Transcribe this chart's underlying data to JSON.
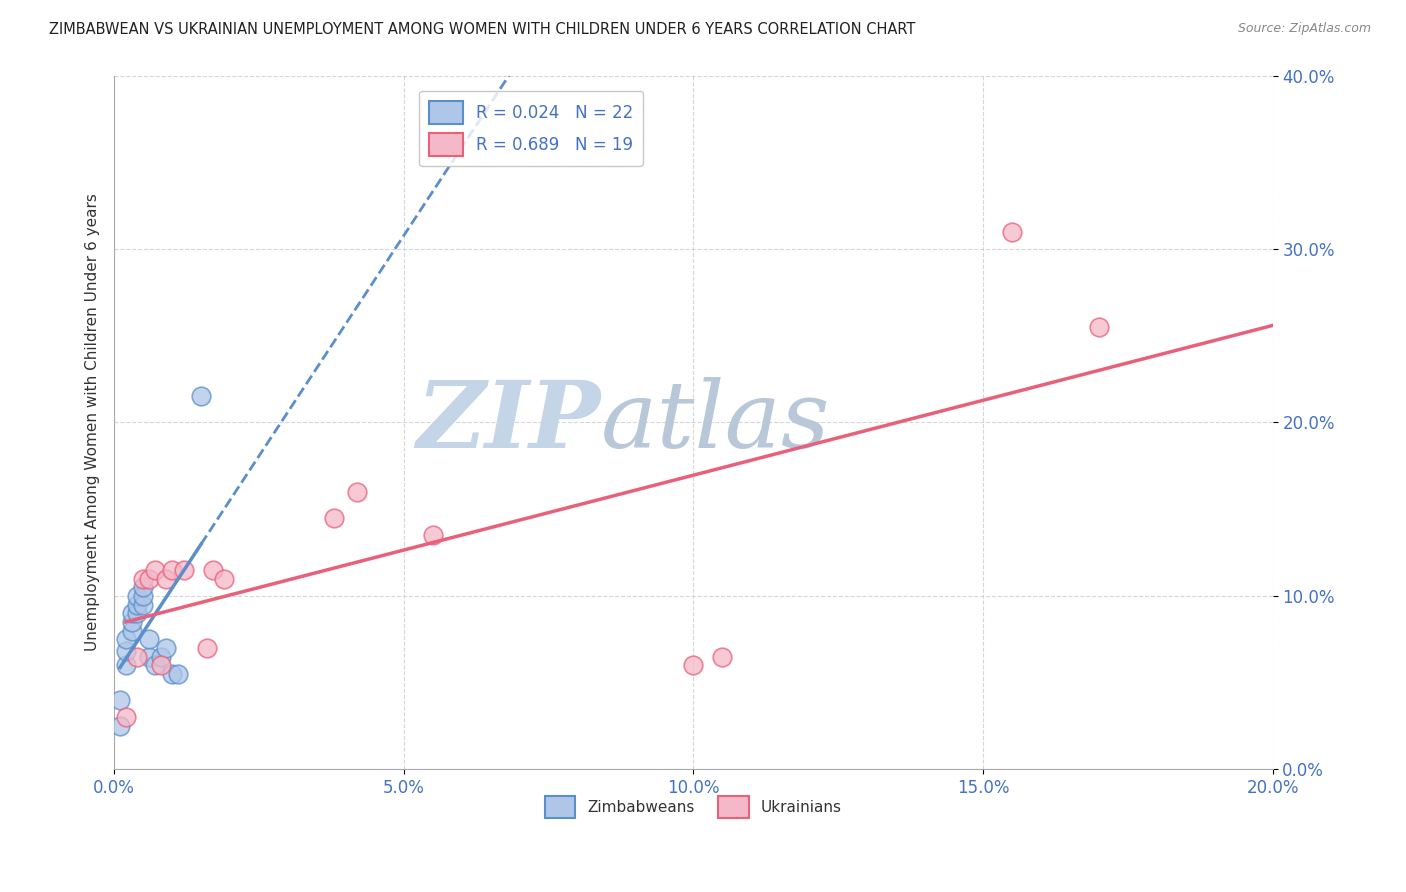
{
  "title": "ZIMBABWEAN VS UKRAINIAN UNEMPLOYMENT AMONG WOMEN WITH CHILDREN UNDER 6 YEARS CORRELATION CHART",
  "source": "Source: ZipAtlas.com",
  "ylabel": "Unemployment Among Women with Children Under 6 years",
  "legend_labels": [
    "Zimbabweans",
    "Ukrainians"
  ],
  "zim_R": "0.024",
  "zim_N": "22",
  "ukr_R": "0.689",
  "ukr_N": "19",
  "zim_color": "#aec6e8",
  "ukr_color": "#f4b8c8",
  "zim_edge_color": "#5b8fc9",
  "ukr_edge_color": "#e8607a",
  "zim_line_color": "#5b8fc9",
  "ukr_line_color": "#e8607a",
  "background_color": "#ffffff",
  "grid_color": "#cccccc",
  "xlim": [
    0.0,
    0.2
  ],
  "ylim": [
    0.0,
    0.4
  ],
  "xticks": [
    0.0,
    0.05,
    0.1,
    0.15,
    0.2
  ],
  "yticks": [
    0.0,
    0.1,
    0.2,
    0.3,
    0.4
  ],
  "tick_label_color": "#4472c4",
  "zim_x": [
    0.001,
    0.001,
    0.002,
    0.002,
    0.002,
    0.003,
    0.003,
    0.003,
    0.004,
    0.004,
    0.004,
    0.005,
    0.005,
    0.005,
    0.006,
    0.006,
    0.007,
    0.008,
    0.009,
    0.01,
    0.011,
    0.015
  ],
  "zim_y": [
    0.04,
    0.025,
    0.06,
    0.068,
    0.075,
    0.08,
    0.085,
    0.09,
    0.09,
    0.095,
    0.1,
    0.095,
    0.1,
    0.105,
    0.065,
    0.075,
    0.06,
    0.065,
    0.07,
    0.055,
    0.055,
    0.215
  ],
  "ukr_x": [
    0.002,
    0.004,
    0.005,
    0.006,
    0.007,
    0.008,
    0.009,
    0.01,
    0.012,
    0.016,
    0.017,
    0.019,
    0.038,
    0.042,
    0.055,
    0.1,
    0.105,
    0.155,
    0.17
  ],
  "ukr_y": [
    0.03,
    0.065,
    0.11,
    0.11,
    0.115,
    0.06,
    0.11,
    0.115,
    0.115,
    0.07,
    0.115,
    0.11,
    0.145,
    0.16,
    0.135,
    0.06,
    0.065,
    0.31,
    0.255
  ],
  "watermark_zip": "ZIP",
  "watermark_atlas": "atlas",
  "watermark_color_zip": "#c5d5e8",
  "watermark_color_atlas": "#b8c8d8"
}
